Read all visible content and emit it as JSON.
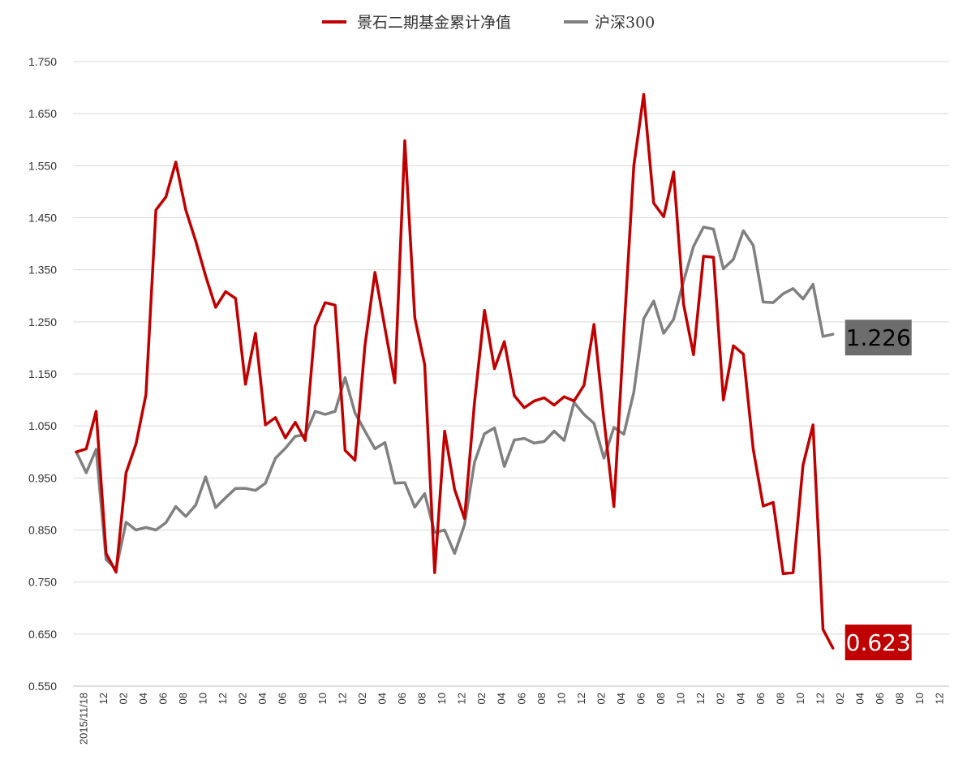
{
  "chart_data": {
    "type": "line",
    "title": "",
    "xlabel": "",
    "ylabel": "",
    "ylim": [
      0.55,
      1.75
    ],
    "y_ticks": [
      "0.550",
      "0.650",
      "0.750",
      "0.850",
      "0.950",
      "1.050",
      "1.150",
      "1.250",
      "1.350",
      "1.450",
      "1.550",
      "1.650",
      "1.750"
    ],
    "grid": "horizontal",
    "legend_position": "top-center",
    "x_tick_labels": [
      "2015/11/18",
      "12",
      "02",
      "04",
      "06",
      "08",
      "10",
      "12",
      "02",
      "04",
      "06",
      "08",
      "10",
      "12",
      "02",
      "04",
      "06",
      "08",
      "10",
      "12",
      "02",
      "04",
      "06",
      "08",
      "10",
      "12",
      "02",
      "04",
      "06",
      "08",
      "10",
      "12",
      "02",
      "04",
      "06",
      "08",
      "10",
      "12",
      "02",
      "04",
      "06",
      "08",
      "10",
      "12"
    ],
    "series": [
      {
        "name": "景石二期基金累计净值",
        "color": "#C00000",
        "end_label": "0.623",
        "values": [
          1.0,
          1.006,
          1.078,
          0.805,
          0.769,
          0.96,
          1.015,
          1.11,
          1.465,
          1.49,
          1.557,
          1.465,
          1.405,
          1.338,
          1.278,
          1.308,
          1.295,
          1.13,
          1.228,
          1.052,
          1.066,
          1.027,
          1.057,
          1.022,
          1.242,
          1.287,
          1.282,
          1.003,
          0.984,
          1.205,
          1.345,
          1.238,
          1.133,
          1.598,
          1.258,
          1.168,
          0.768,
          1.04,
          0.928,
          0.872,
          1.095,
          1.272,
          1.16,
          1.212,
          1.108,
          1.085,
          1.098,
          1.104,
          1.09,
          1.106,
          1.098,
          1.128,
          1.245,
          1.062,
          0.895,
          1.228,
          1.55,
          1.687,
          1.478,
          1.452,
          1.538,
          1.284,
          1.187,
          1.376,
          1.374,
          1.1,
          1.204,
          1.188,
          1.005,
          0.896,
          0.903,
          0.766,
          0.768,
          0.975,
          1.052,
          0.659,
          0.623
        ]
      },
      {
        "name": "沪深300",
        "color": "#808080",
        "end_label": "1.226",
        "values": [
          1.0,
          0.96,
          1.005,
          0.793,
          0.775,
          0.865,
          0.85,
          0.855,
          0.85,
          0.864,
          0.895,
          0.876,
          0.898,
          0.952,
          0.893,
          0.912,
          0.93,
          0.93,
          0.926,
          0.94,
          0.988,
          1.007,
          1.03,
          1.033,
          1.078,
          1.072,
          1.078,
          1.143,
          1.075,
          1.04,
          1.006,
          1.018,
          0.94,
          0.941,
          0.894,
          0.92,
          0.845,
          0.85,
          0.805,
          0.86,
          0.98,
          1.035,
          1.046,
          0.972,
          1.023,
          1.026,
          1.017,
          1.02,
          1.04,
          1.022,
          1.095,
          1.072,
          1.055,
          0.988,
          1.047,
          1.034,
          1.115,
          1.256,
          1.29,
          1.228,
          1.255,
          1.328,
          1.395,
          1.432,
          1.428,
          1.352,
          1.37,
          1.425,
          1.397,
          1.288,
          1.287,
          1.304,
          1.314,
          1.294,
          1.322,
          1.222,
          1.226
        ]
      }
    ]
  }
}
